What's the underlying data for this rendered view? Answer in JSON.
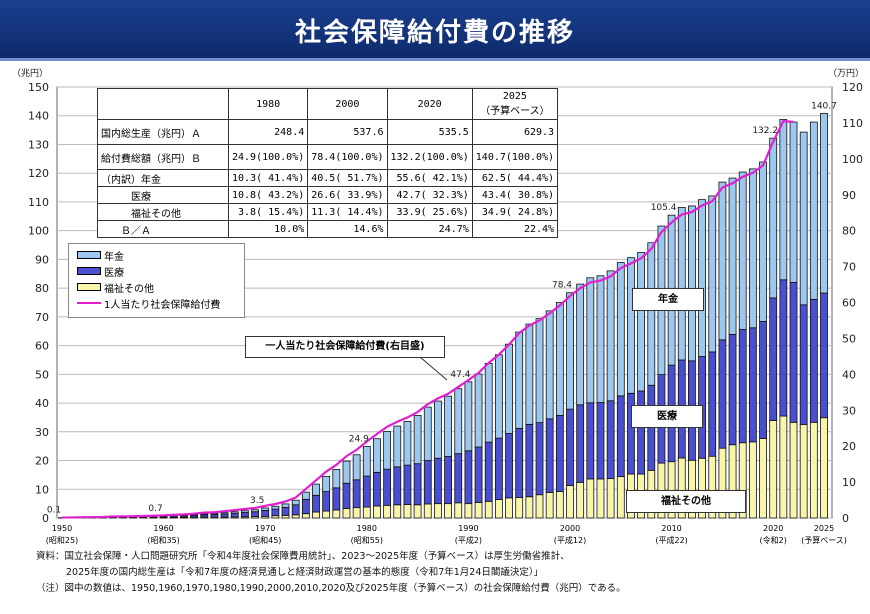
{
  "title": "社会保障給付費の推移",
  "table": {
    "headers": [
      "",
      "1980",
      "2000",
      "2020",
      "2025\n（予算ベース）"
    ],
    "rows": [
      [
        "国内総生産（兆円）Ａ",
        "248.4",
        "537.6",
        "535.5",
        "629.3"
      ],
      [
        "給付費総額（兆円）Ｂ",
        "24.9(100.0%)",
        "78.4(100.0%)",
        "132.2(100.0%)",
        "140.7(100.0%)"
      ],
      [
        "（内訳）年金",
        "10.3( 41.4%)",
        "40.5( 51.7%)",
        "55.6( 42.1%)",
        "62.5( 44.4%)"
      ],
      [
        "　　　医療",
        "10.8( 43.2%)",
        "26.6( 33.9%)",
        "42.7( 32.3%)",
        "43.4( 30.8%)"
      ],
      [
        "　　　福祉その他",
        "3.8( 15.4%)",
        "11.3( 14.4%)",
        "33.9( 25.6%)",
        "34.9( 24.8%)"
      ],
      [
        "　　Ｂ／Ａ",
        "10.0%",
        "14.6%",
        "24.7%",
        "22.4%"
      ]
    ]
  },
  "legend": [
    "年金",
    "医療",
    "福祉その他",
    "1人当たり社会保障給付費"
  ],
  "callouts": {
    "line": "一人当たり社会保障給付費(右目盛)",
    "pension": "年金",
    "medical": "医療",
    "welfare": "福祉その他"
  },
  "footer": [
    "資料：国立社会保障・人口問題研究所「令和4年度社会保障費用統計」、2023～2025年度（予算ベース）は厚生労働省推計、",
    "2025年度の国内総生産は「令和7年度の経済見通しと経済財政運営の基本的態度（令和7年1月24日閣議決定）」",
    "（注）図中の数値は、1950,1960,1970,1980,1990,2000,2010,2020及び2025年度（予算ベース）の社会保障給付費（兆円）である。"
  ],
  "chart_data": {
    "type": "bar",
    "stacked": true,
    "yunit_left": "（兆円）",
    "yunit_right": "（万円）",
    "ylim_left": [
      0,
      150
    ],
    "ylim_right": [
      0,
      120
    ],
    "yticks_left": [
      0,
      10,
      20,
      30,
      40,
      50,
      60,
      70,
      80,
      90,
      100,
      110,
      120,
      130,
      140,
      150
    ],
    "yticks_right": [
      0,
      10,
      20,
      30,
      40,
      50,
      60,
      70,
      80,
      90,
      100,
      110,
      120
    ],
    "grid": true,
    "legend_position": "top-left",
    "xstart": 1950,
    "xticks": [
      {
        "year": 1950,
        "label": "1950",
        "sub": "(昭和25)"
      },
      {
        "year": 1960,
        "label": "1960",
        "sub": "(昭和35)"
      },
      {
        "year": 1970,
        "label": "1970",
        "sub": "(昭和45)"
      },
      {
        "year": 1980,
        "label": "1980",
        "sub": "(昭和55)"
      },
      {
        "year": 1990,
        "label": "1990",
        "sub": "(平成2)"
      },
      {
        "year": 2000,
        "label": "2000",
        "sub": "(平成12)"
      },
      {
        "year": 2010,
        "label": "2010",
        "sub": "(平成22)"
      },
      {
        "year": 2020,
        "label": "2020",
        "sub": "(令和2)"
      },
      {
        "year": 2025,
        "label": "2025",
        "sub": "(予算ベース)"
      }
    ],
    "colors": {
      "pension": "#9cc8f0",
      "medical": "#4a4fd0",
      "welfare": "#f8f4a8",
      "line": "#e020d0"
    },
    "series": [
      {
        "name": "福祉その他",
        "values": [
          0.05,
          0.06,
          0.07,
          0.08,
          0.09,
          0.16,
          0.17,
          0.17,
          0.19,
          0.21,
          0.22,
          0.24,
          0.26,
          0.3,
          0.34,
          0.31,
          0.34,
          0.38,
          0.42,
          0.48,
          0.58,
          0.8,
          0.9,
          1.1,
          1.5,
          2.1,
          2.4,
          2.8,
          3.3,
          3.6,
          3.8,
          4.2,
          4.4,
          4.6,
          4.7,
          4.6,
          4.9,
          5.0,
          5.0,
          5.3,
          5.0,
          5.4,
          5.8,
          6.4,
          7.0,
          7.1,
          7.4,
          8.1,
          8.9,
          9.2,
          11.3,
          12.4,
          13.6,
          13.6,
          13.7,
          14.4,
          15.3,
          15.3,
          16.6,
          19.1,
          19.6,
          20.9,
          20.1,
          20.8,
          21.5,
          24.3,
          25.5,
          26.2,
          26.5,
          27.7,
          33.9,
          35.5,
          33.3,
          32.5,
          33.3,
          34.9
        ]
      },
      {
        "name": "医療",
        "values": [
          0.05,
          0.06,
          0.08,
          0.11,
          0.13,
          0.18,
          0.2,
          0.21,
          0.25,
          0.29,
          0.33,
          0.42,
          0.51,
          0.63,
          0.78,
          0.93,
          1.1,
          1.3,
          1.5,
          1.7,
          2.06,
          2.3,
          2.8,
          3.5,
          5.0,
          5.8,
          6.8,
          7.7,
          8.8,
          9.7,
          10.8,
          11.7,
          12.6,
          13.2,
          13.7,
          14.3,
          15.1,
          15.8,
          16.4,
          17.1,
          18.4,
          19.3,
          20.6,
          21.4,
          22.4,
          24.1,
          25.2,
          25.1,
          25.6,
          26.5,
          26.6,
          27.0,
          26.5,
          26.6,
          27.1,
          28.1,
          28.1,
          28.9,
          29.6,
          30.8,
          33.6,
          34.1,
          34.6,
          35.4,
          36.3,
          37.7,
          38.4,
          39.4,
          39.7,
          40.7,
          42.7,
          47.4,
          48.7,
          41.7,
          42.8,
          43.4
        ]
      },
      {
        "name": "年金",
        "values": [
          0.0,
          0.01,
          0.02,
          0.03,
          0.04,
          0.05,
          0.05,
          0.06,
          0.07,
          0.08,
          0.15,
          0.17,
          0.21,
          0.25,
          0.3,
          0.36,
          0.42,
          0.5,
          0.6,
          0.7,
          0.86,
          1.0,
          1.2,
          1.6,
          2.5,
          3.9,
          5.3,
          6.4,
          7.7,
          8.7,
          10.3,
          11.7,
          13.1,
          14.2,
          15.2,
          16.8,
          18.6,
          19.9,
          21.0,
          22.6,
          24.0,
          25.4,
          27.4,
          29.0,
          31.1,
          33.5,
          34.9,
          36.2,
          37.6,
          39.3,
          40.5,
          42.0,
          43.5,
          44.1,
          45.2,
          46.4,
          47.2,
          48.2,
          49.6,
          51.7,
          52.2,
          53.1,
          53.9,
          54.6,
          54.3,
          54.9,
          54.4,
          54.8,
          55.3,
          55.5,
          55.6,
          55.8,
          55.8,
          60.1,
          61.7,
          62.5
        ]
      }
    ],
    "line": {
      "name": "1人当たり社会保障給付費",
      "axis": "right",
      "values": [
        0.12,
        0.15,
        0.2,
        0.26,
        0.29,
        0.43,
        0.46,
        0.48,
        0.55,
        0.63,
        0.75,
        0.87,
        1.0,
        1.2,
        1.5,
        1.6,
        1.9,
        2.2,
        2.5,
        2.8,
        3.4,
        3.9,
        4.6,
        5.7,
        8.1,
        10.5,
        12.9,
        14.8,
        17.2,
        19.0,
        21.3,
        23.4,
        25.4,
        26.8,
        28.0,
        29.5,
        31.7,
        33.3,
        34.6,
        36.5,
        38.4,
        40.4,
        43.2,
        45.5,
        48.3,
        51.5,
        53.6,
        55.0,
        57.0,
        59.2,
        61.8,
        64.0,
        65.6,
        66.1,
        67.3,
        69.6,
        70.9,
        72.3,
        74.9,
        79.6,
        82.3,
        84.5,
        85.2,
        87.0,
        88.2,
        92.0,
        93.2,
        95.0,
        96.1,
        98.2,
        104.8,
        110.5,
        110.3
      ]
    },
    "data_labels": [
      {
        "year": 1950,
        "text": "0.1"
      },
      {
        "year": 1960,
        "text": "0.7"
      },
      {
        "year": 1970,
        "text": "3.5"
      },
      {
        "year": 1980,
        "text": "24.9"
      },
      {
        "year": 1990,
        "text": "47.4"
      },
      {
        "year": 2000,
        "text": "78.4"
      },
      {
        "year": 2010,
        "text": "105.4"
      },
      {
        "year": 2020,
        "text": "132.2"
      },
      {
        "year": 2025,
        "text": "140.7"
      }
    ]
  }
}
